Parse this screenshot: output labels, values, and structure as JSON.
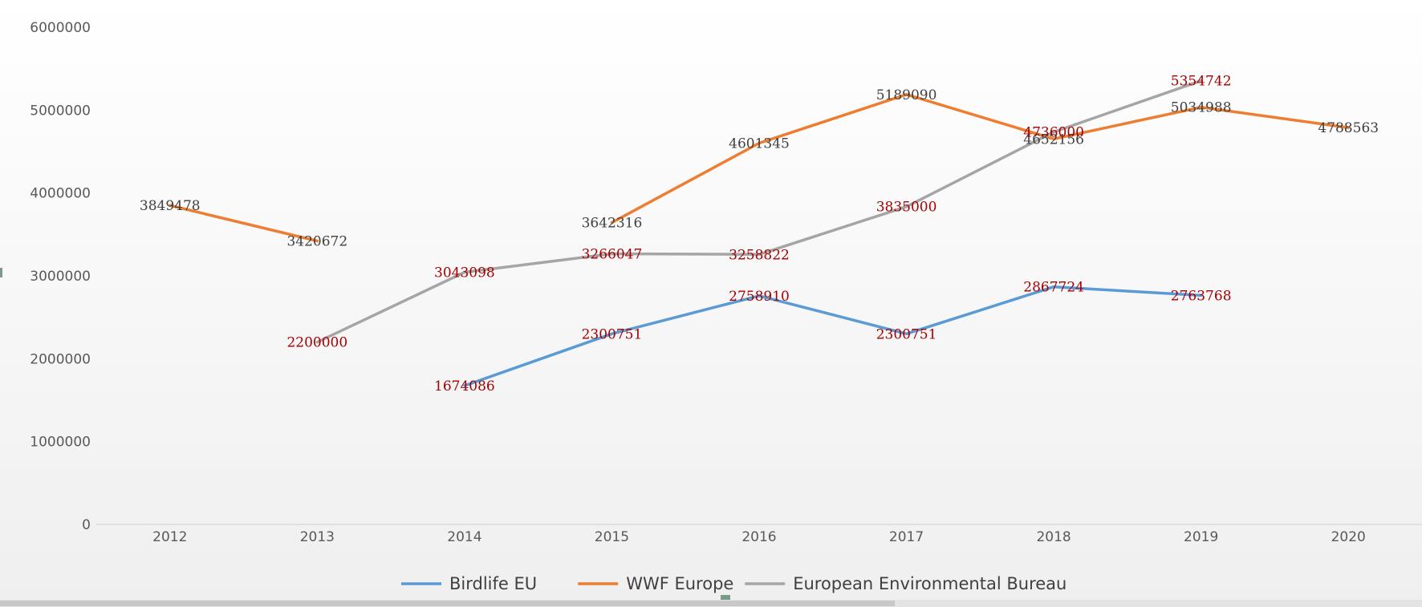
{
  "chart_data": {
    "type": "line",
    "title": "",
    "xlabel": "",
    "ylabel": "",
    "categories": [
      "2012",
      "2013",
      "2014",
      "2015",
      "2016",
      "2017",
      "2018",
      "2019",
      "2020"
    ],
    "ylim": [
      0,
      6000000
    ],
    "y_ticks": [
      0,
      1000000,
      2000000,
      3000000,
      4000000,
      5000000,
      6000000
    ],
    "y_tick_labels": [
      "0",
      "1000000",
      "2000000",
      "3000000",
      "4000000",
      "5000000",
      "6000000"
    ],
    "grid": false,
    "legend": "bottom",
    "series": [
      {
        "name": "Birdlife EU",
        "color": "#5b9bd5",
        "label_color": "#a50000",
        "values": [
          null,
          null,
          1674086,
          2300751,
          2758910,
          2300751,
          2867724,
          2763768,
          null
        ],
        "labels": [
          "",
          "",
          "1674086",
          "2300751",
          "2758910",
          "2300751",
          "2867724",
          "2763768",
          ""
        ]
      },
      {
        "name": "WWF Europe",
        "color": "#ed7d31",
        "label_color": "#404040",
        "values": [
          3849478,
          3420672,
          null,
          3642316,
          4601345,
          5189090,
          4652156,
          5034988,
          4788563
        ],
        "labels": [
          "3849478",
          "3420672",
          "",
          "3642316",
          "4601345",
          "5189090",
          "4652156",
          "5034988",
          "4788563"
        ]
      },
      {
        "name": "European Environmental Bureau",
        "color": "#a5a5a5",
        "label_color": "#a50000",
        "values": [
          null,
          2200000,
          3043098,
          3266047,
          3258822,
          3835000,
          4736000,
          5354742,
          null
        ],
        "labels": [
          "",
          "2200000",
          "3043098",
          "3266047",
          "3258822",
          "3835000",
          "4736000",
          "5354742",
          ""
        ]
      }
    ]
  },
  "legend": {
    "items": [
      {
        "name": "Birdlife EU",
        "color": "#5b9bd5"
      },
      {
        "name": "WWF Europe",
        "color": "#ed7d31"
      },
      {
        "name": "European Environmental Bureau",
        "color": "#a5a5a5"
      }
    ]
  }
}
